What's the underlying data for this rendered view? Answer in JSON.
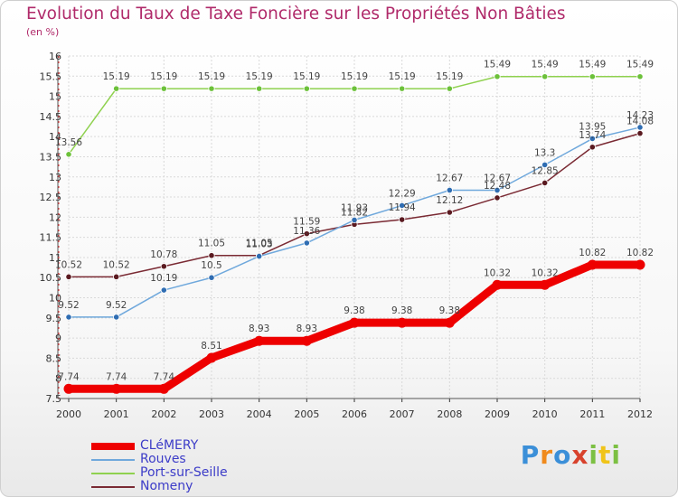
{
  "title": "Evolution du Taux de Taxe Foncière sur les Propriétés Non Bâties",
  "subtitle": "(en %)",
  "brand": {
    "text": "Proxiti",
    "colors": [
      "#3b8fd8",
      "#f08a1c",
      "#3b8fd8",
      "#d8422c",
      "#7cc043",
      "#f0c419",
      "#7cc043"
    ]
  },
  "chart_data": {
    "type": "line",
    "categories": [
      "2000",
      "2001",
      "2002",
      "2003",
      "2004",
      "2005",
      "2006",
      "2007",
      "2008",
      "2009",
      "2010",
      "2011",
      "2012"
    ],
    "ylim": [
      7.5,
      16
    ],
    "yticks": [
      7.5,
      8,
      8.5,
      9,
      9.5,
      10,
      10.5,
      11,
      11.5,
      12,
      12.5,
      13,
      13.5,
      14,
      14.5,
      15,
      15.5,
      16
    ],
    "grid": true,
    "legend_placement": "bottom-left",
    "series": [
      {
        "name": "CLéMERY",
        "color": "#ee0000",
        "width": 9,
        "marker": 5.5,
        "values": [
          7.74,
          7.74,
          7.74,
          8.51,
          8.93,
          8.93,
          9.38,
          9.38,
          9.38,
          10.32,
          10.32,
          10.82,
          10.82
        ],
        "labels": [
          "7.74",
          "7.74",
          "7.74",
          "8.51",
          "8.93",
          "8.93",
          "9.38",
          "9.38",
          "9.38",
          "10.32",
          "10.32",
          "10.82",
          "10.82"
        ]
      },
      {
        "name": "Rouves",
        "color": "#6fa8dc",
        "width": 1.5,
        "marker": 3.2,
        "markerColor": "#2f6db2",
        "values": [
          9.52,
          9.52,
          10.19,
          10.5,
          11.03,
          11.36,
          11.93,
          12.29,
          12.67,
          12.67,
          13.3,
          13.95,
          14.23
        ],
        "labels": [
          "9.52",
          "9.52",
          "10.19",
          "10.5",
          "11.03",
          "11.36",
          "11.93",
          "12.29",
          "12.67",
          "12.67",
          "13.3",
          "13.95",
          "14.23"
        ]
      },
      {
        "name": "Port-sur-Seille",
        "color": "#8fd14f",
        "width": 1.5,
        "marker": 3.2,
        "markerColor": "#6cc13a",
        "values": [
          13.56,
          15.19,
          15.19,
          15.19,
          15.19,
          15.19,
          15.19,
          15.19,
          15.19,
          15.49,
          15.49,
          15.49,
          15.49
        ],
        "labels": [
          "13.56",
          "15.19",
          "15.19",
          "15.19",
          "15.19",
          "15.19",
          "15.19",
          "15.19",
          "15.19",
          "15.49",
          "15.49",
          "15.49",
          "15.49"
        ]
      },
      {
        "name": "Nomeny",
        "color": "#7a2a33",
        "width": 1.5,
        "marker": 3.2,
        "markerColor": "#5a1a20",
        "values": [
          10.52,
          10.52,
          10.78,
          11.05,
          11.05,
          11.59,
          11.82,
          11.94,
          12.12,
          12.48,
          12.85,
          13.74,
          14.08
        ],
        "labels": [
          "10.52",
          "10.52",
          "10.78",
          "11.05",
          "11.05",
          "11.59",
          "11.82",
          "11.94",
          "12.12",
          "12.48",
          "12.85",
          "13.74",
          "14.08"
        ]
      }
    ]
  }
}
